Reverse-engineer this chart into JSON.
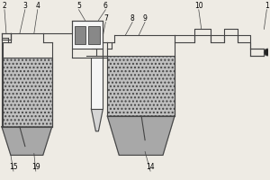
{
  "bg_color": "#eeebe4",
  "line_color": "#444444",
  "fill_gray": "#c0c0c0",
  "fill_dark": "#a8a8a8",
  "fill_white": "#f5f5f5",
  "figsize": [
    3.0,
    2.0
  ],
  "dpi": 100,
  "lw": 0.8
}
